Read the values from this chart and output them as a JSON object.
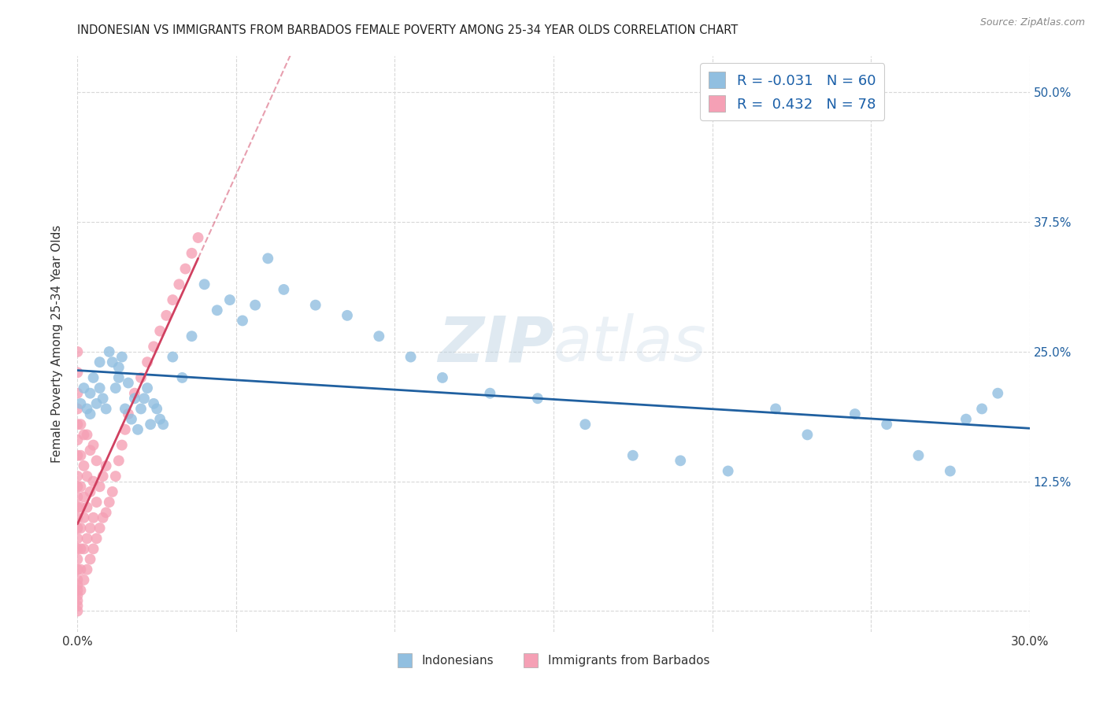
{
  "title": "INDONESIAN VS IMMIGRANTS FROM BARBADOS FEMALE POVERTY AMONG 25-34 YEAR OLDS CORRELATION CHART",
  "source": "Source: ZipAtlas.com",
  "ylabel": "Female Poverty Among 25-34 Year Olds",
  "xlim": [
    0.0,
    0.3
  ],
  "ylim": [
    -0.02,
    0.535
  ],
  "watermark": "ZIPatlas",
  "indonesian_color": "#91bfe0",
  "barbados_color": "#f5a0b5",
  "trend_indonesian_color": "#2060a0",
  "trend_barbados_color": "#d04060",
  "legend_label_1": "R = -0.031   N = 60",
  "legend_label_2": "R =  0.432   N = 78",
  "legend_bottom_1": "Indonesians",
  "legend_bottom_2": "Immigrants from Barbados",
  "R_indonesian": -0.031,
  "N_indonesian": 60,
  "R_barbados": 0.432,
  "N_barbados": 78,
  "background_color": "#ffffff",
  "grid_color": "#d8d8d8",
  "indonesian_x": [
    0.001,
    0.002,
    0.003,
    0.004,
    0.004,
    0.005,
    0.006,
    0.007,
    0.007,
    0.008,
    0.009,
    0.01,
    0.011,
    0.012,
    0.013,
    0.013,
    0.014,
    0.015,
    0.016,
    0.017,
    0.018,
    0.019,
    0.02,
    0.021,
    0.022,
    0.023,
    0.024,
    0.025,
    0.026,
    0.027,
    0.03,
    0.033,
    0.036,
    0.04,
    0.044,
    0.048,
    0.052,
    0.056,
    0.06,
    0.065,
    0.075,
    0.085,
    0.095,
    0.105,
    0.115,
    0.13,
    0.145,
    0.16,
    0.175,
    0.19,
    0.205,
    0.22,
    0.23,
    0.245,
    0.255,
    0.265,
    0.275,
    0.28,
    0.285,
    0.29
  ],
  "indonesian_y": [
    0.2,
    0.215,
    0.195,
    0.21,
    0.19,
    0.225,
    0.2,
    0.24,
    0.215,
    0.205,
    0.195,
    0.25,
    0.24,
    0.215,
    0.235,
    0.225,
    0.245,
    0.195,
    0.22,
    0.185,
    0.205,
    0.175,
    0.195,
    0.205,
    0.215,
    0.18,
    0.2,
    0.195,
    0.185,
    0.18,
    0.245,
    0.225,
    0.265,
    0.315,
    0.29,
    0.3,
    0.28,
    0.295,
    0.34,
    0.31,
    0.295,
    0.285,
    0.265,
    0.245,
    0.225,
    0.21,
    0.205,
    0.18,
    0.15,
    0.145,
    0.135,
    0.195,
    0.17,
    0.19,
    0.18,
    0.15,
    0.135,
    0.185,
    0.195,
    0.21
  ],
  "barbados_x": [
    0.0,
    0.0,
    0.0,
    0.0,
    0.0,
    0.0,
    0.0,
    0.0,
    0.0,
    0.0,
    0.0,
    0.0,
    0.0,
    0.0,
    0.0,
    0.0,
    0.0,
    0.0,
    0.0,
    0.0,
    0.0,
    0.0,
    0.0,
    0.0,
    0.001,
    0.001,
    0.001,
    0.001,
    0.001,
    0.001,
    0.001,
    0.001,
    0.002,
    0.002,
    0.002,
    0.002,
    0.002,
    0.002,
    0.003,
    0.003,
    0.003,
    0.003,
    0.003,
    0.004,
    0.004,
    0.004,
    0.004,
    0.005,
    0.005,
    0.005,
    0.005,
    0.006,
    0.006,
    0.006,
    0.007,
    0.007,
    0.008,
    0.008,
    0.009,
    0.009,
    0.01,
    0.011,
    0.012,
    0.013,
    0.014,
    0.015,
    0.016,
    0.018,
    0.02,
    0.022,
    0.024,
    0.026,
    0.028,
    0.03,
    0.032,
    0.034,
    0.036,
    0.038
  ],
  "barbados_y": [
    0.0,
    0.005,
    0.01,
    0.015,
    0.02,
    0.025,
    0.03,
    0.04,
    0.05,
    0.06,
    0.07,
    0.08,
    0.09,
    0.1,
    0.11,
    0.12,
    0.13,
    0.15,
    0.165,
    0.18,
    0.195,
    0.21,
    0.23,
    0.25,
    0.02,
    0.04,
    0.06,
    0.08,
    0.1,
    0.12,
    0.15,
    0.18,
    0.03,
    0.06,
    0.09,
    0.11,
    0.14,
    0.17,
    0.04,
    0.07,
    0.1,
    0.13,
    0.17,
    0.05,
    0.08,
    0.115,
    0.155,
    0.06,
    0.09,
    0.125,
    0.16,
    0.07,
    0.105,
    0.145,
    0.08,
    0.12,
    0.09,
    0.13,
    0.095,
    0.14,
    0.105,
    0.115,
    0.13,
    0.145,
    0.16,
    0.175,
    0.19,
    0.21,
    0.225,
    0.24,
    0.255,
    0.27,
    0.285,
    0.3,
    0.315,
    0.33,
    0.345,
    0.36
  ]
}
